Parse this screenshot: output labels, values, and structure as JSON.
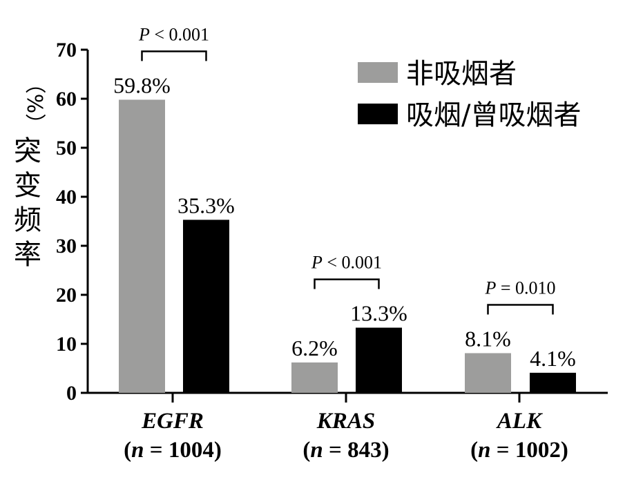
{
  "chart_data": {
    "type": "bar",
    "ylabel": "突变频率（%）",
    "ylim": [
      0,
      70
    ],
    "yticks": [
      0,
      10,
      20,
      30,
      40,
      50,
      60,
      70
    ],
    "categories": [
      {
        "name": "EGFR",
        "n": "(n = 1004)"
      },
      {
        "name": "KRAS",
        "n": "(n = 843)"
      },
      {
        "name": "ALK",
        "n": "(n = 1002)"
      }
    ],
    "series": [
      {
        "name": "非吸烟者",
        "color": "#9d9d9c",
        "values": [
          59.8,
          6.2,
          8.1
        ],
        "labels": [
          "59.8%",
          "6.2%",
          "8.1%"
        ]
      },
      {
        "name": "吸烟/曾吸烟者",
        "color": "#000000",
        "values": [
          35.3,
          13.3,
          4.1
        ],
        "labels": [
          "35.3%",
          "13.3%",
          "4.1%"
        ]
      }
    ],
    "annotations": [
      {
        "category": "EGFR",
        "text": "P < 0.001"
      },
      {
        "category": "KRAS",
        "text": "P < 0.001"
      },
      {
        "category": "ALK",
        "text": "P = 0.010"
      }
    ],
    "legend_position": "top-right",
    "grid": false
  }
}
